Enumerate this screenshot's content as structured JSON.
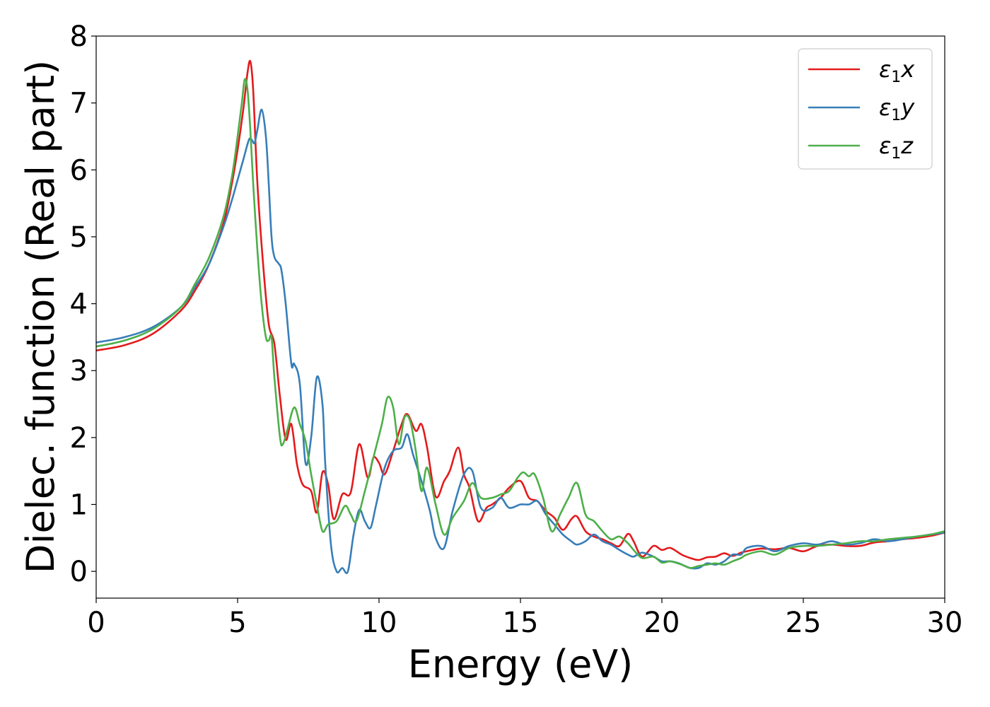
{
  "chart_data": {
    "type": "line",
    "title": "",
    "xlabel": "Energy (eV)",
    "ylabel": "Dielec. function (Real part)",
    "xlim": [
      0,
      30
    ],
    "ylim": [
      -0.4,
      8.0
    ],
    "xticks": [
      0,
      5,
      10,
      15,
      20,
      25,
      30
    ],
    "yticks": [
      0,
      1,
      2,
      3,
      4,
      5,
      6,
      7,
      8
    ],
    "grid": false,
    "legend_position": "top-right",
    "series": [
      {
        "name": "ε₁x",
        "label_base": "ε",
        "label_sub": "1",
        "label_suffix": "x",
        "color": "#e41a1c",
        "x": [
          0,
          1,
          2,
          3,
          3.5,
          4,
          4.5,
          4.8,
          5.0,
          5.2,
          5.35,
          5.45,
          5.55,
          5.7,
          5.9,
          6.1,
          6.3,
          6.5,
          6.7,
          6.9,
          7.1,
          7.3,
          7.6,
          7.8,
          8.0,
          8.2,
          8.4,
          8.7,
          9.0,
          9.3,
          9.6,
          9.8,
          10.0,
          10.2,
          10.5,
          10.8,
          11.0,
          11.3,
          11.5,
          11.7,
          12.0,
          12.3,
          12.5,
          12.8,
          13.0,
          13.2,
          13.5,
          13.8,
          14.0,
          14.3,
          14.6,
          15.0,
          15.3,
          15.6,
          15.9,
          16.2,
          16.5,
          16.8,
          17.0,
          17.3,
          17.6,
          17.9,
          18.2,
          18.5,
          18.8,
          19.0,
          19.3,
          19.7,
          20.0,
          20.3,
          20.7,
          21.0,
          21.3,
          21.6,
          21.9,
          22.2,
          22.5,
          22.8,
          23.0,
          23.5,
          24.0,
          24.5,
          25.0,
          25.5,
          26.0,
          26.5,
          27.0,
          27.5,
          28.0,
          28.5,
          29.0,
          29.5,
          30.0
        ],
        "y": [
          3.3,
          3.38,
          3.55,
          3.9,
          4.2,
          4.6,
          5.2,
          5.8,
          6.3,
          6.9,
          7.45,
          7.62,
          7.2,
          5.8,
          4.6,
          3.7,
          3.4,
          2.6,
          1.97,
          2.2,
          1.6,
          1.3,
          1.2,
          0.88,
          1.48,
          1.3,
          0.78,
          1.15,
          1.18,
          1.9,
          1.4,
          1.7,
          1.62,
          1.45,
          1.8,
          2.2,
          2.35,
          2.1,
          2.2,
          1.85,
          1.12,
          1.35,
          1.5,
          1.85,
          1.45,
          1.25,
          0.75,
          0.95,
          1.0,
          1.1,
          1.25,
          1.35,
          1.1,
          1.05,
          0.9,
          0.8,
          0.62,
          0.78,
          0.82,
          0.6,
          0.52,
          0.48,
          0.42,
          0.38,
          0.56,
          0.45,
          0.22,
          0.38,
          0.32,
          0.35,
          0.25,
          0.2,
          0.17,
          0.21,
          0.22,
          0.27,
          0.23,
          0.28,
          0.3,
          0.34,
          0.33,
          0.35,
          0.3,
          0.38,
          0.4,
          0.38,
          0.38,
          0.43,
          0.45,
          0.48,
          0.5,
          0.53,
          0.58
        ]
      },
      {
        "name": "ε₁y",
        "label_base": "ε",
        "label_sub": "1",
        "label_suffix": "y",
        "color": "#377eb8",
        "x": [
          0,
          1,
          2,
          3,
          3.5,
          4,
          4.5,
          4.8,
          5.0,
          5.2,
          5.4,
          5.5,
          5.6,
          5.7,
          5.85,
          6.0,
          6.1,
          6.2,
          6.3,
          6.45,
          6.55,
          6.7,
          6.9,
          7.0,
          7.2,
          7.4,
          7.6,
          7.8,
          8.0,
          8.1,
          8.3,
          8.5,
          8.7,
          8.9,
          9.1,
          9.3,
          9.5,
          9.7,
          9.9,
          10.2,
          10.5,
          10.8,
          11.0,
          11.2,
          11.5,
          11.8,
          12.0,
          12.3,
          12.6,
          13.0,
          13.3,
          13.6,
          14.0,
          14.3,
          14.6,
          15.0,
          15.3,
          15.6,
          15.9,
          16.2,
          16.5,
          16.8,
          17.0,
          17.3,
          17.6,
          17.9,
          18.2,
          18.5,
          18.8,
          19.0,
          19.3,
          19.7,
          20.0,
          20.3,
          20.6,
          21.0,
          21.3,
          21.6,
          21.9,
          22.2,
          22.5,
          22.8,
          23.0,
          23.5,
          24.0,
          24.5,
          25.0,
          25.5,
          26.0,
          26.5,
          27.0,
          27.5,
          28.0,
          28.5,
          29.0,
          29.5,
          30.0
        ],
        "y": [
          3.42,
          3.5,
          3.65,
          3.95,
          4.25,
          4.6,
          5.15,
          5.55,
          5.85,
          6.15,
          6.45,
          6.45,
          6.4,
          6.6,
          6.9,
          6.5,
          5.8,
          5.0,
          4.7,
          4.6,
          4.5,
          4.0,
          3.1,
          3.1,
          2.8,
          1.62,
          2.0,
          2.9,
          2.5,
          1.6,
          0.4,
          0.0,
          0.05,
          0.0,
          0.55,
          0.92,
          0.75,
          0.65,
          1.0,
          1.55,
          1.8,
          1.85,
          2.05,
          1.75,
          1.35,
          0.9,
          0.5,
          0.35,
          0.9,
          1.45,
          1.5,
          0.95,
          0.95,
          1.1,
          0.95,
          1.0,
          1.0,
          1.05,
          0.85,
          0.7,
          0.55,
          0.45,
          0.4,
          0.45,
          0.55,
          0.45,
          0.4,
          0.32,
          0.25,
          0.22,
          0.28,
          0.22,
          0.15,
          0.15,
          0.12,
          0.05,
          0.05,
          0.12,
          0.1,
          0.15,
          0.25,
          0.25,
          0.35,
          0.38,
          0.3,
          0.38,
          0.42,
          0.4,
          0.45,
          0.4,
          0.42,
          0.48,
          0.45,
          0.48,
          0.52,
          0.55,
          0.58
        ]
      },
      {
        "name": "ε₁z",
        "label_base": "ε",
        "label_sub": "1",
        "label_suffix": "z",
        "color": "#4daf4a",
        "x": [
          0,
          1,
          2,
          3,
          3.5,
          4,
          4.5,
          4.8,
          5.0,
          5.15,
          5.25,
          5.35,
          5.45,
          5.55,
          5.7,
          5.85,
          6.0,
          6.1,
          6.2,
          6.3,
          6.5,
          6.6,
          6.75,
          7.0,
          7.2,
          7.4,
          7.6,
          7.8,
          8.0,
          8.2,
          8.5,
          8.8,
          9.0,
          9.2,
          9.5,
          9.8,
          10.1,
          10.3,
          10.5,
          10.7,
          10.9,
          11.1,
          11.3,
          11.5,
          11.7,
          12.0,
          12.3,
          12.6,
          13.0,
          13.3,
          13.6,
          14.0,
          14.3,
          14.6,
          14.9,
          15.1,
          15.3,
          15.5,
          15.8,
          16.1,
          16.4,
          16.7,
          17.0,
          17.3,
          17.6,
          17.9,
          18.2,
          18.5,
          18.8,
          19.0,
          19.3,
          19.7,
          20.0,
          20.3,
          20.7,
          21.0,
          21.3,
          21.6,
          21.9,
          22.2,
          22.5,
          22.8,
          23.0,
          23.5,
          24.0,
          24.5,
          25.0,
          25.5,
          26.0,
          26.5,
          27.0,
          27.5,
          28.0,
          28.5,
          29.0,
          29.5,
          30.0
        ],
        "y": [
          3.36,
          3.45,
          3.62,
          3.95,
          4.3,
          4.7,
          5.3,
          5.9,
          6.5,
          7.0,
          7.35,
          7.2,
          6.6,
          5.8,
          4.8,
          4.0,
          3.5,
          3.45,
          3.5,
          2.9,
          2.0,
          1.9,
          2.1,
          2.45,
          2.2,
          1.95,
          1.45,
          1.0,
          0.6,
          0.7,
          0.75,
          0.98,
          0.85,
          0.75,
          1.2,
          1.7,
          2.2,
          2.6,
          2.45,
          1.9,
          2.3,
          2.25,
          1.8,
          1.2,
          1.55,
          1.0,
          0.55,
          0.8,
          1.05,
          1.32,
          1.1,
          1.1,
          1.15,
          1.2,
          1.4,
          1.48,
          1.42,
          1.45,
          1.1,
          0.6,
          0.85,
          1.1,
          1.32,
          0.85,
          0.75,
          0.6,
          0.48,
          0.52,
          0.42,
          0.32,
          0.2,
          0.22,
          0.13,
          0.15,
          0.1,
          0.05,
          0.08,
          0.1,
          0.12,
          0.1,
          0.15,
          0.2,
          0.25,
          0.3,
          0.25,
          0.35,
          0.38,
          0.38,
          0.4,
          0.42,
          0.45,
          0.45,
          0.48,
          0.5,
          0.52,
          0.55,
          0.6
        ]
      }
    ]
  }
}
